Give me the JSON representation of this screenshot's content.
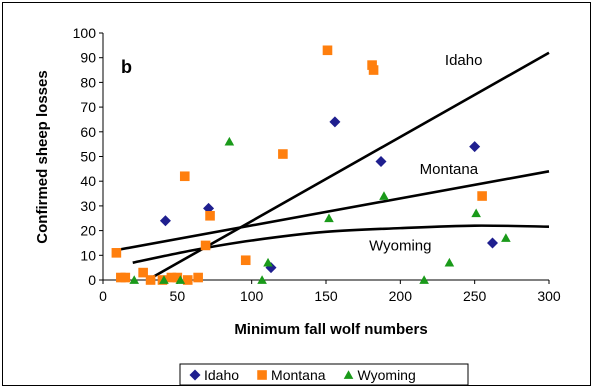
{
  "chart_data": {
    "type": "scatter",
    "panel_label": "b",
    "xlabel": "Minimum fall wolf numbers",
    "ylabel": "Confirmed sheep losses",
    "xlim": [
      0,
      300
    ],
    "ylim": [
      0,
      100
    ],
    "x_ticks": [
      0,
      50,
      100,
      150,
      200,
      250,
      300
    ],
    "y_ticks": [
      0,
      10,
      20,
      30,
      40,
      50,
      60,
      70,
      80,
      90,
      100
    ],
    "grid": false,
    "legend_position": "bottom",
    "series": [
      {
        "name": "Idaho",
        "marker": "diamond",
        "color": "#1f1f8f",
        "points": [
          [
            42,
            24
          ],
          [
            71,
            29
          ],
          [
            113,
            5
          ],
          [
            156,
            64
          ],
          [
            187,
            48
          ],
          [
            250,
            54
          ],
          [
            262,
            15
          ]
        ]
      },
      {
        "name": "Montana",
        "marker": "square",
        "color": "#ff7f0e",
        "points": [
          [
            9,
            11
          ],
          [
            12,
            1
          ],
          [
            15,
            1
          ],
          [
            27,
            3
          ],
          [
            32,
            0
          ],
          [
            40,
            0
          ],
          [
            46,
            1
          ],
          [
            50,
            1
          ],
          [
            55,
            42
          ],
          [
            57,
            0
          ],
          [
            64,
            1
          ],
          [
            69,
            14
          ],
          [
            72,
            26
          ],
          [
            96,
            8
          ],
          [
            121,
            51
          ],
          [
            151,
            93
          ],
          [
            181,
            87
          ],
          [
            182,
            85
          ],
          [
            255,
            34
          ]
        ]
      },
      {
        "name": "Wyoming",
        "marker": "triangle",
        "color": "#1a9a1a",
        "points": [
          [
            21,
            0
          ],
          [
            41,
            0
          ],
          [
            52,
            0
          ],
          [
            85,
            56
          ],
          [
            107,
            0
          ],
          [
            111,
            7
          ],
          [
            152,
            25
          ],
          [
            189,
            34
          ],
          [
            216,
            0
          ],
          [
            233,
            7
          ],
          [
            251,
            27
          ],
          [
            271,
            17
          ]
        ]
      }
    ],
    "trendlines": [
      {
        "label": "Idaho",
        "type": "linear",
        "points": [
          [
            30,
            0
          ],
          [
            300,
            92
          ]
        ]
      },
      {
        "label": "Montana",
        "type": "linear",
        "points": [
          [
            8,
            12
          ],
          [
            300,
            44
          ]
        ]
      },
      {
        "label": "Wyoming",
        "type": "polynomial",
        "points": [
          [
            20,
            7
          ],
          [
            60,
            12
          ],
          [
            100,
            16
          ],
          [
            150,
            19.5
          ],
          [
            200,
            21
          ],
          [
            250,
            22
          ],
          [
            300,
            21.6
          ]
        ]
      }
    ],
    "annotations": [
      {
        "text": "Idaho",
        "x": 230,
        "y": 87
      },
      {
        "text": "Montana",
        "x": 213,
        "y": 43
      },
      {
        "text": "Wyoming",
        "x": 179,
        "y": 12
      }
    ]
  }
}
